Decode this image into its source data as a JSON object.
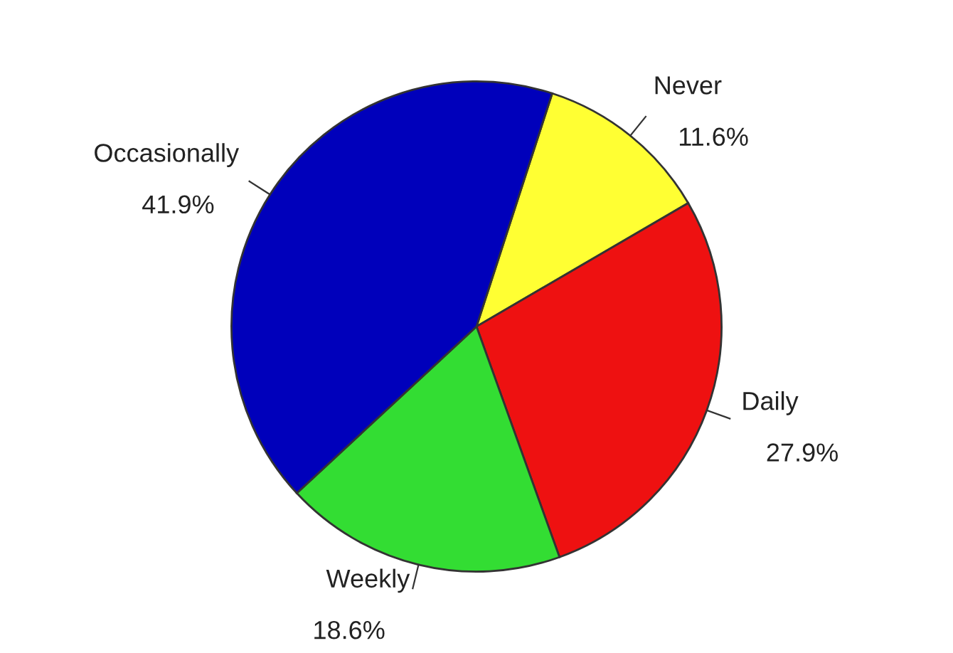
{
  "chart_data": {
    "type": "pie",
    "categories": [
      "Never",
      "Daily",
      "Weekly",
      "Occasionally"
    ],
    "values": [
      11.6,
      27.9,
      18.6,
      41.9
    ],
    "value_labels": [
      "11.6%",
      "27.9%",
      "18.6%",
      "41.9%"
    ],
    "colors": [
      "#ffff33",
      "#ee1111",
      "#33dd33",
      "#0000bb"
    ]
  }
}
